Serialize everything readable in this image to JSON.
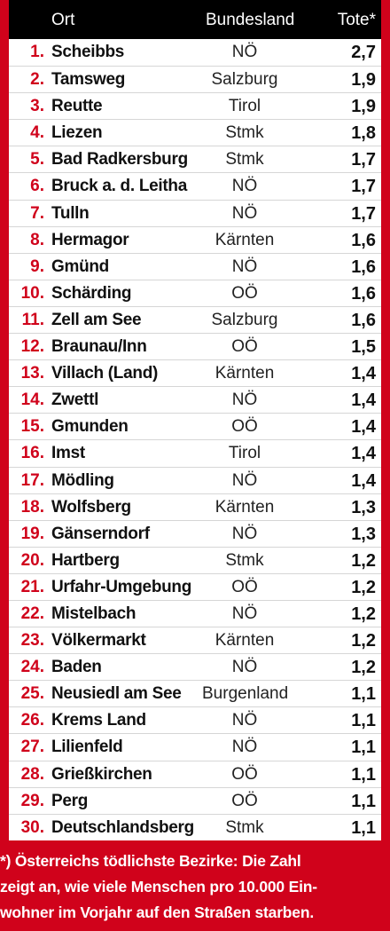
{
  "header": {
    "col_place": "Ort",
    "col_state": "Bundesland",
    "col_value": "Tote*"
  },
  "rows": [
    {
      "rank": "1.",
      "place": "Scheibbs",
      "state": "NÖ",
      "value": "2,7"
    },
    {
      "rank": "2.",
      "place": "Tamsweg",
      "state": "Salzburg",
      "value": "1,9"
    },
    {
      "rank": "3.",
      "place": "Reutte",
      "state": "Tirol",
      "value": "1,9"
    },
    {
      "rank": "4.",
      "place": "Liezen",
      "state": "Stmk",
      "value": "1,8"
    },
    {
      "rank": "5.",
      "place": "Bad Radkersburg",
      "state": "Stmk",
      "value": "1,7"
    },
    {
      "rank": "6.",
      "place": "Bruck a. d. Leitha",
      "state": "NÖ",
      "value": "1,7"
    },
    {
      "rank": "7.",
      "place": "Tulln",
      "state": "NÖ",
      "value": "1,7"
    },
    {
      "rank": "8.",
      "place": "Hermagor",
      "state": "Kärnten",
      "value": "1,6"
    },
    {
      "rank": "9.",
      "place": "Gmünd",
      "state": "NÖ",
      "value": "1,6"
    },
    {
      "rank": "10.",
      "place": "Schärding",
      "state": "OÖ",
      "value": "1,6"
    },
    {
      "rank": "11.",
      "place": "Zell am See",
      "state": "Salzburg",
      "value": "1,6"
    },
    {
      "rank": "12.",
      "place": "Braunau/Inn",
      "state": "OÖ",
      "value": "1,5"
    },
    {
      "rank": "13.",
      "place": "Villach (Land)",
      "state": "Kärnten",
      "value": "1,4"
    },
    {
      "rank": "14.",
      "place": "Zwettl",
      "state": "NÖ",
      "value": "1,4"
    },
    {
      "rank": "15.",
      "place": "Gmunden",
      "state": "OÖ",
      "value": "1,4"
    },
    {
      "rank": "16.",
      "place": "Imst",
      "state": "Tirol",
      "value": "1,4"
    },
    {
      "rank": "17.",
      "place": "Mödling",
      "state": "NÖ",
      "value": "1,4"
    },
    {
      "rank": "18.",
      "place": "Wolfsberg",
      "state": "Kärnten",
      "value": "1,3"
    },
    {
      "rank": "19.",
      "place": "Gänserndorf",
      "state": "NÖ",
      "value": "1,3"
    },
    {
      "rank": "20.",
      "place": "Hartberg",
      "state": "Stmk",
      "value": "1,2"
    },
    {
      "rank": "21.",
      "place": "Urfahr-Umgebung",
      "state": "OÖ",
      "value": "1,2"
    },
    {
      "rank": "22.",
      "place": "Mistelbach",
      "state": "NÖ",
      "value": "1,2"
    },
    {
      "rank": "23.",
      "place": "Völkermarkt",
      "state": "Kärnten",
      "value": "1,2"
    },
    {
      "rank": "24.",
      "place": "Baden",
      "state": "NÖ",
      "value": "1,2"
    },
    {
      "rank": "25.",
      "place": "Neusiedl am See",
      "state": "Burgenland",
      "value": "1,1"
    },
    {
      "rank": "26.",
      "place": "Krems Land",
      "state": "NÖ",
      "value": "1,1"
    },
    {
      "rank": "27.",
      "place": "Lilienfeld",
      "state": "NÖ",
      "value": "1,1"
    },
    {
      "rank": "28.",
      "place": "Grießkirchen",
      "state": "OÖ",
      "value": "1,1"
    },
    {
      "rank": "29.",
      "place": "Perg",
      "state": "OÖ",
      "value": "1,1"
    },
    {
      "rank": "30.",
      "place": "Deutschlandsberg",
      "state": "Stmk",
      "value": "1,1"
    }
  ],
  "footnote": {
    "line1": "*) Österreichs tödlichste Bezirke: Die Zahl",
    "line2": "zeigt an, wie viele Menschen pro 10.000 Ein-",
    "line3": "wohner im Vorjahr auf den Straßen starben."
  },
  "colors": {
    "accent": "#d0021b",
    "header_bg": "#000000"
  }
}
